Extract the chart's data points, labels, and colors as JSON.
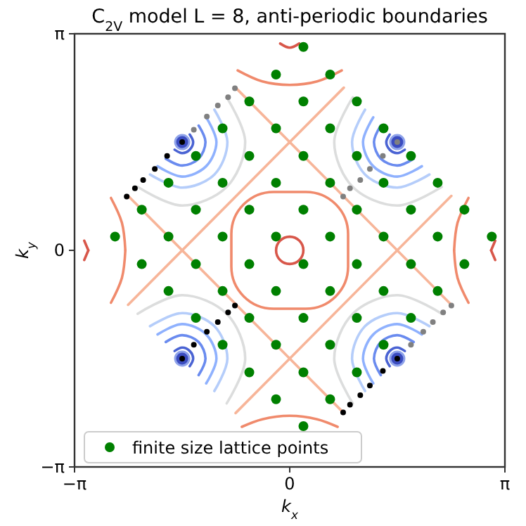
{
  "chart_data": {
    "type": "scatter",
    "title": "C$_{2V}$ model L = 8, anti-periodic boundaries",
    "xlabel": "k$_{x}$",
    "ylabel": "k$_{y}$",
    "xlim": [
      -3.14159,
      3.14159
    ],
    "ylim": [
      -3.14159,
      3.14159
    ],
    "xticks": [
      {
        "value": -3.14159,
        "label": "−π"
      },
      {
        "value": 0,
        "label": "0"
      },
      {
        "value": 3.14159,
        "label": "π"
      }
    ],
    "yticks": [
      {
        "value": -3.14159,
        "label": "−π"
      },
      {
        "value": 0,
        "label": "0"
      },
      {
        "value": 3.14159,
        "label": "π"
      }
    ],
    "legend": "bottom left",
    "grid": false,
    "line_style": "solid",
    "series": [
      {
        "type": "line",
        "color": "#f7b599",
        "x": [
          -0.79,
          2.36
        ],
        "values": [
          2.36,
          -0.79
        ]
      },
      {
        "type": "line",
        "color": "#f7b599",
        "x": [
          -2.36,
          0.79
        ],
        "values": [
          0.79,
          -2.36
        ]
      },
      {
        "type": "line",
        "color": "#f7b599",
        "x": [
          -0.79,
          2.36
        ],
        "values": [
          -2.36,
          0.79
        ]
      },
      {
        "type": "line",
        "color": "#f7b599",
        "x": [
          -2.36,
          0.79
        ],
        "values": [
          -0.79,
          2.36
        ]
      },
      {
        "type": "line",
        "color": "#f08a6c",
        "x": [
          -2.61,
          -2.45,
          -2.4
        ],
        "values": [
          0.76,
          0.4,
          0
        ]
      },
      {
        "type": "line",
        "color": "#f08a6c",
        "x": [
          -2.61,
          -2.45,
          -2.4
        ],
        "values": [
          -0.76,
          -0.4,
          0
        ]
      },
      {
        "type": "line",
        "color": "#f08a6c",
        "x": [
          2.4,
          2.45,
          2.61
        ],
        "values": [
          0,
          0.4,
          0.76
        ]
      },
      {
        "type": "line",
        "color": "#f08a6c",
        "x": [
          2.4,
          2.45,
          2.61
        ],
        "values": [
          0,
          -0.4,
          -0.76
        ]
      },
      {
        "type": "line",
        "color": "#f08a6c",
        "x": [
          -0.76,
          -0.4,
          0,
          0.4,
          0.76
        ],
        "values": [
          2.61,
          2.45,
          2.4,
          2.45,
          2.61
        ]
      },
      {
        "type": "line",
        "color": "#f08a6c",
        "x": [
          -0.7,
          -0.4,
          0,
          0.4,
          0.7
        ],
        "values": [
          -2.56,
          -2.45,
          -2.4,
          -2.45,
          -2.56
        ]
      },
      {
        "type": "line",
        "color": "#d8574a",
        "x": [
          -3,
          -2.94
        ],
        "values": [
          0.14,
          0
        ]
      },
      {
        "type": "line",
        "color": "#d8574a",
        "x": [
          -3,
          -2.94
        ],
        "values": [
          -0.14,
          0
        ]
      },
      {
        "type": "line",
        "color": "#d8574a",
        "x": [
          2.94,
          3
        ],
        "values": [
          0,
          0.14
        ]
      },
      {
        "type": "line",
        "color": "#d8574a",
        "x": [
          2.94,
          3
        ],
        "values": [
          0,
          -0.14
        ]
      },
      {
        "type": "line",
        "color": "#d8574a",
        "x": [
          -0.14,
          0,
          0.14
        ],
        "values": [
          3,
          2.94,
          3
        ]
      },
      {
        "type": "line",
        "color": "#4a63d3",
        "x": [
          -1.68,
          -1.57,
          -1.46,
          -1.41,
          -1.46
        ],
        "values": [
          1.46,
          1.41,
          1.46,
          1.57,
          1.68
        ]
      },
      {
        "type": "line",
        "color": "#4a63d3",
        "x": [
          1.68,
          1.57,
          1.46,
          1.41,
          1.46
        ],
        "values": [
          1.46,
          1.41,
          1.46,
          1.57,
          1.68
        ]
      },
      {
        "type": "line",
        "color": "#4a63d3",
        "x": [
          -1.68,
          -1.57,
          -1.46,
          -1.41,
          -1.46
        ],
        "values": [
          -1.46,
          -1.41,
          -1.46,
          -1.57,
          -1.68
        ]
      },
      {
        "type": "line",
        "color": "#4a63d3",
        "x": [
          1.68,
          1.57,
          1.46,
          1.41,
          1.46
        ],
        "values": [
          -1.46,
          -1.41,
          -1.46,
          -1.57,
          -1.68
        ]
      },
      {
        "type": "line",
        "color": "#6a8bef",
        "x": [
          -1.81,
          -1.57,
          -1.33,
          -1.23,
          -1.33
        ],
        "values": [
          1.33,
          1.23,
          1.33,
          1.57,
          1.81
        ]
      },
      {
        "type": "line",
        "color": "#6a8bef",
        "x": [
          1.81,
          1.57,
          1.33,
          1.23,
          1.33
        ],
        "values": [
          1.33,
          1.23,
          1.33,
          1.57,
          1.81
        ]
      },
      {
        "type": "line",
        "color": "#6a8bef",
        "x": [
          -1.81,
          -1.57,
          -1.33,
          -1.23,
          -1.33
        ],
        "values": [
          -1.33,
          -1.23,
          -1.33,
          -1.57,
          -1.81
        ]
      },
      {
        "type": "line",
        "color": "#6a8bef",
        "x": [
          1.81,
          1.57,
          1.33,
          1.23,
          1.33
        ],
        "values": [
          -1.33,
          -1.23,
          -1.33,
          -1.57,
          -1.81
        ]
      },
      {
        "type": "line",
        "color": "#8fb1fe",
        "x": [
          -1.93,
          -1.57,
          -1.22,
          -1.07,
          -1.22
        ],
        "values": [
          1.22,
          1.07,
          1.22,
          1.57,
          1.93
        ]
      },
      {
        "type": "line",
        "color": "#8fb1fe",
        "x": [
          1.93,
          1.57,
          1.22,
          1.07,
          1.22
        ],
        "values": [
          1.22,
          1.07,
          1.22,
          1.57,
          1.93
        ]
      },
      {
        "type": "line",
        "color": "#8fb1fe",
        "x": [
          -1.93,
          -1.57,
          -1.22,
          -1.07,
          -1.22
        ],
        "values": [
          -1.22,
          -1.07,
          -1.22,
          -1.57,
          -1.93
        ]
      },
      {
        "type": "line",
        "color": "#8fb1fe",
        "x": [
          1.93,
          1.57,
          1.22,
          1.07,
          1.22
        ],
        "values": [
          -1.22,
          -1.07,
          -1.22,
          -1.57,
          -1.93
        ]
      },
      {
        "type": "line",
        "color": "#b5cdfa",
        "x": [
          -2.04,
          -1.57,
          -1.1,
          -0.91,
          -1.1
        ],
        "values": [
          1.1,
          0.91,
          1.1,
          1.57,
          2.04
        ]
      },
      {
        "type": "line",
        "color": "#b5cdfa",
        "x": [
          2.04,
          1.57,
          1.1,
          0.91,
          1.1
        ],
        "values": [
          1.1,
          0.91,
          1.1,
          1.57,
          2.04
        ]
      },
      {
        "type": "line",
        "color": "#b5cdfa",
        "x": [
          -2.04,
          -1.57,
          -1.1,
          -0.91,
          -1.1
        ],
        "values": [
          -1.1,
          -0.91,
          -1.1,
          -1.57,
          -2.04
        ]
      },
      {
        "type": "line",
        "color": "#b5cdfa",
        "x": [
          2.04,
          1.57,
          1.1,
          0.91,
          1.1
        ],
        "values": [
          -1.1,
          -0.91,
          -1.1,
          -1.57,
          -2.04
        ]
      },
      {
        "type": "line",
        "color": "#dcdddd",
        "x": [
          -2.22,
          -1.57,
          -0.92,
          -0.65,
          -0.92
        ],
        "values": [
          0.92,
          0.65,
          0.92,
          1.57,
          2.22
        ]
      },
      {
        "type": "line",
        "color": "#dcdddd",
        "x": [
          2.22,
          1.57,
          0.92,
          0.65,
          0.92
        ],
        "values": [
          0.92,
          0.65,
          0.92,
          1.57,
          2.22
        ]
      },
      {
        "type": "line",
        "color": "#dcdddd",
        "x": [
          -2.22,
          -1.57,
          -0.92,
          -0.65,
          -0.92
        ],
        "values": [
          -0.92,
          -0.65,
          -0.92,
          -1.57,
          -2.22
        ]
      },
      {
        "type": "line",
        "color": "#dcdddd",
        "x": [
          2.22,
          1.57,
          0.92,
          0.65,
          0.92
        ],
        "values": [
          -0.92,
          -0.65,
          -0.92,
          -1.57,
          -2.22
        ]
      },
      {
        "marker": "circle",
        "color": "#3b4cc0",
        "x": [
          -1.57,
          1.57,
          -1.57,
          1.57
        ],
        "values": [
          1.57,
          1.57,
          -1.57,
          -1.57
        ]
      },
      {
        "marker": "circle",
        "color": "#000000",
        "x": [
          -1.57,
          -1.79,
          -1.97,
          -2.14,
          -2.26,
          -2.38,
          1.57,
          1.36,
          1.17,
          1.03,
          0.88,
          0.78,
          -1.57,
          -1.4,
          -1.21,
          -1.05,
          -0.9,
          -0.8
        ],
        "values": [
          1.57,
          1.37,
          1.18,
          1.02,
          0.9,
          0.78,
          -1.57,
          -1.75,
          -1.96,
          -2.1,
          -2.24,
          -2.35,
          -1.57,
          -1.37,
          -1.18,
          -1.04,
          -0.9,
          -0.8
        ]
      },
      {
        "marker": "circle",
        "color": "#808080",
        "x": [
          -1.4,
          -1.21,
          -1.05,
          -0.9,
          -0.8,
          1.57,
          1.36,
          1.17,
          1.03,
          0.88,
          0.78,
          1.77,
          1.95,
          2.09,
          2.24,
          2.36
        ],
        "values": [
          1.75,
          1.94,
          2.1,
          2.22,
          2.35,
          1.57,
          1.37,
          1.18,
          1.02,
          0.9,
          0.78,
          -1.37,
          -1.18,
          -1.04,
          -0.9,
          -0.8
        ]
      },
      {
        "marker": "circle",
        "name": "finite size lattice points",
        "color": "#008000",
        "x": [
          0.2,
          -0.2,
          0.59,
          -0.59,
          0.2,
          0.98,
          -0.98,
          -0.2,
          0.59,
          1.37,
          -1.37,
          -0.59,
          0.2,
          0.98,
          1.77,
          -1.77,
          -0.98,
          -0.2,
          0.59,
          1.37,
          2.16,
          -2.16,
          -1.37,
          -0.59,
          0.2,
          0.98,
          1.77,
          2.55,
          -2.55,
          -1.77,
          -0.98,
          -0.2,
          0.59,
          1.37,
          2.16,
          2.95,
          -2.16,
          -1.37,
          -0.59,
          0.2,
          0.98,
          1.77,
          2.55,
          -1.77,
          -0.98,
          -0.2,
          0.59,
          1.37,
          2.16,
          -1.37,
          -0.59,
          0.2,
          0.98,
          1.77,
          -0.98,
          -0.2,
          0.59,
          1.37,
          -0.59,
          0.2,
          0.98,
          -0.2,
          0.59,
          0.2
        ],
        "values": [
          2.95,
          2.55,
          2.55,
          2.16,
          2.16,
          2.16,
          1.77,
          1.77,
          1.77,
          1.77,
          1.37,
          1.37,
          1.37,
          1.37,
          1.37,
          0.98,
          0.98,
          0.98,
          0.98,
          0.98,
          0.98,
          0.59,
          0.59,
          0.59,
          0.59,
          0.59,
          0.59,
          0.59,
          0.2,
          0.2,
          0.2,
          0.2,
          0.2,
          0.2,
          0.2,
          0.2,
          -0.2,
          -0.2,
          -0.2,
          -0.2,
          -0.2,
          -0.2,
          -0.2,
          -0.59,
          -0.59,
          -0.59,
          -0.59,
          -0.59,
          -0.59,
          -0.98,
          -0.98,
          -0.98,
          -0.98,
          -0.98,
          -1.37,
          -1.37,
          -1.37,
          -1.37,
          -1.77,
          -1.77,
          -1.77,
          -2.16,
          -2.16,
          -2.55
        ]
      }
    ]
  }
}
